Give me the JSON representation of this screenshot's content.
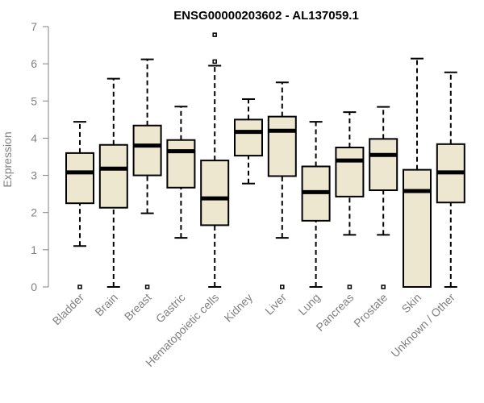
{
  "chart_data": {
    "type": "boxplot",
    "title": "ENSG00000203602 - AL137059.1",
    "ylabel": "Expression",
    "xlabel": "",
    "ylim": [
      0,
      7
    ],
    "yticks": [
      0,
      1,
      2,
      3,
      4,
      5,
      6,
      7
    ],
    "colors": {
      "box_fill": "#ede7cf",
      "box_stroke": "#000000",
      "axis": "#808080"
    },
    "categories": [
      "Bladder",
      "Brain",
      "Breast",
      "Gastric",
      "Hematopoietic cells",
      "Kidney",
      "Liver",
      "Lung",
      "Pancreas",
      "Prostate",
      "Skin",
      "Unknown / Other"
    ],
    "boxes": [
      {
        "min": 1.1,
        "q1": 2.25,
        "median": 3.08,
        "q3": 3.6,
        "max": 4.44,
        "outliers": [
          0
        ]
      },
      {
        "min": 0,
        "q1": 2.13,
        "median": 3.18,
        "q3": 3.82,
        "max": 5.6,
        "outliers": []
      },
      {
        "min": 1.98,
        "q1": 3.0,
        "median": 3.8,
        "q3": 4.34,
        "max": 6.12,
        "outliers": [
          0
        ]
      },
      {
        "min": 1.32,
        "q1": 2.67,
        "median": 3.65,
        "q3": 3.95,
        "max": 4.85,
        "outliers": []
      },
      {
        "min": 0,
        "q1": 1.66,
        "median": 2.38,
        "q3": 3.4,
        "max": 5.95,
        "outliers": [
          6.78,
          6.06
        ]
      },
      {
        "min": 2.78,
        "q1": 3.53,
        "median": 4.17,
        "q3": 4.5,
        "max": 5.05,
        "outliers": []
      },
      {
        "min": 1.32,
        "q1": 2.98,
        "median": 4.2,
        "q3": 4.58,
        "max": 5.5,
        "outliers": [
          0
        ]
      },
      {
        "min": 0,
        "q1": 1.78,
        "median": 2.55,
        "q3": 3.24,
        "max": 4.44,
        "outliers": []
      },
      {
        "min": 1.4,
        "q1": 2.43,
        "median": 3.4,
        "q3": 3.75,
        "max": 4.7,
        "outliers": [
          0
        ]
      },
      {
        "min": 1.4,
        "q1": 2.6,
        "median": 3.55,
        "q3": 3.98,
        "max": 4.84,
        "outliers": [
          0
        ]
      },
      {
        "min": 0,
        "q1": 0,
        "median": 2.58,
        "q3": 3.15,
        "max": 6.14,
        "outliers": []
      },
      {
        "min": 0,
        "q1": 2.27,
        "median": 3.08,
        "q3": 3.84,
        "max": 5.77,
        "outliers": []
      }
    ]
  }
}
